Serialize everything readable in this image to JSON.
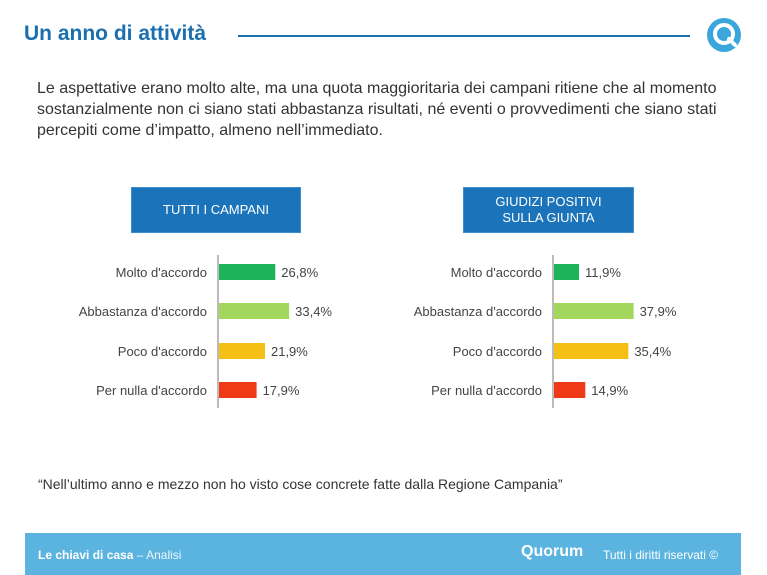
{
  "header": {
    "title": "Un anno di attività",
    "logo_icon": "quorum-q-icon"
  },
  "intro_text": "Le aspettative erano molto alte, ma una quota maggioritaria dei campani ritiene che al momento sostanzialmente non ci siano stati abbastanza risultati, né eventi o provvedimenti che siano stati percepiti come d’impatto, almeno nell’immediato.",
  "colors": {
    "accent": "#1a6fb0",
    "molto": "#1db35a",
    "abbastanza": "#a3d65c",
    "poco": "#f5c016",
    "per_nulla": "#f03a17",
    "footer": "#5bb4e0"
  },
  "chart_data": [
    {
      "type": "bar",
      "orientation": "horizontal",
      "title": "TUTTI I CAMPANI",
      "categories": [
        "Molto d'accordo",
        "Abbastanza d'accordo",
        "Poco d'accordo",
        "Per nulla d'accordo"
      ],
      "values": [
        26.8,
        33.4,
        21.9,
        17.9
      ],
      "value_labels": [
        "26,8%",
        "33,4%",
        "21,9%",
        "17,9%"
      ],
      "xlim": [
        0,
        100
      ],
      "grid": false
    },
    {
      "type": "bar",
      "orientation": "horizontal",
      "title": "GIUDIZI POSITIVI SULLA GIUNTA",
      "title_lines": [
        "GIUDIZI POSITIVI",
        "SULLA GIUNTA"
      ],
      "categories": [
        "Molto d'accordo",
        "Abbastanza d'accordo",
        "Poco d'accordo",
        "Per nulla d'accordo"
      ],
      "values": [
        11.9,
        37.9,
        35.4,
        14.9
      ],
      "value_labels": [
        "11,9%",
        "37,9%",
        "35,4%",
        "14,9%"
      ],
      "xlim": [
        0,
        100
      ],
      "grid": false
    }
  ],
  "quote": "“Nell’ultimo anno e mezzo non ho visto cose concrete fatte dalla Regione Campania”",
  "footer": {
    "title": "Le chiavi di casa",
    "separator": "–",
    "subtitle": "Analisi",
    "brand": "Quorum",
    "rights": "Tutti i diritti riservati ©"
  }
}
